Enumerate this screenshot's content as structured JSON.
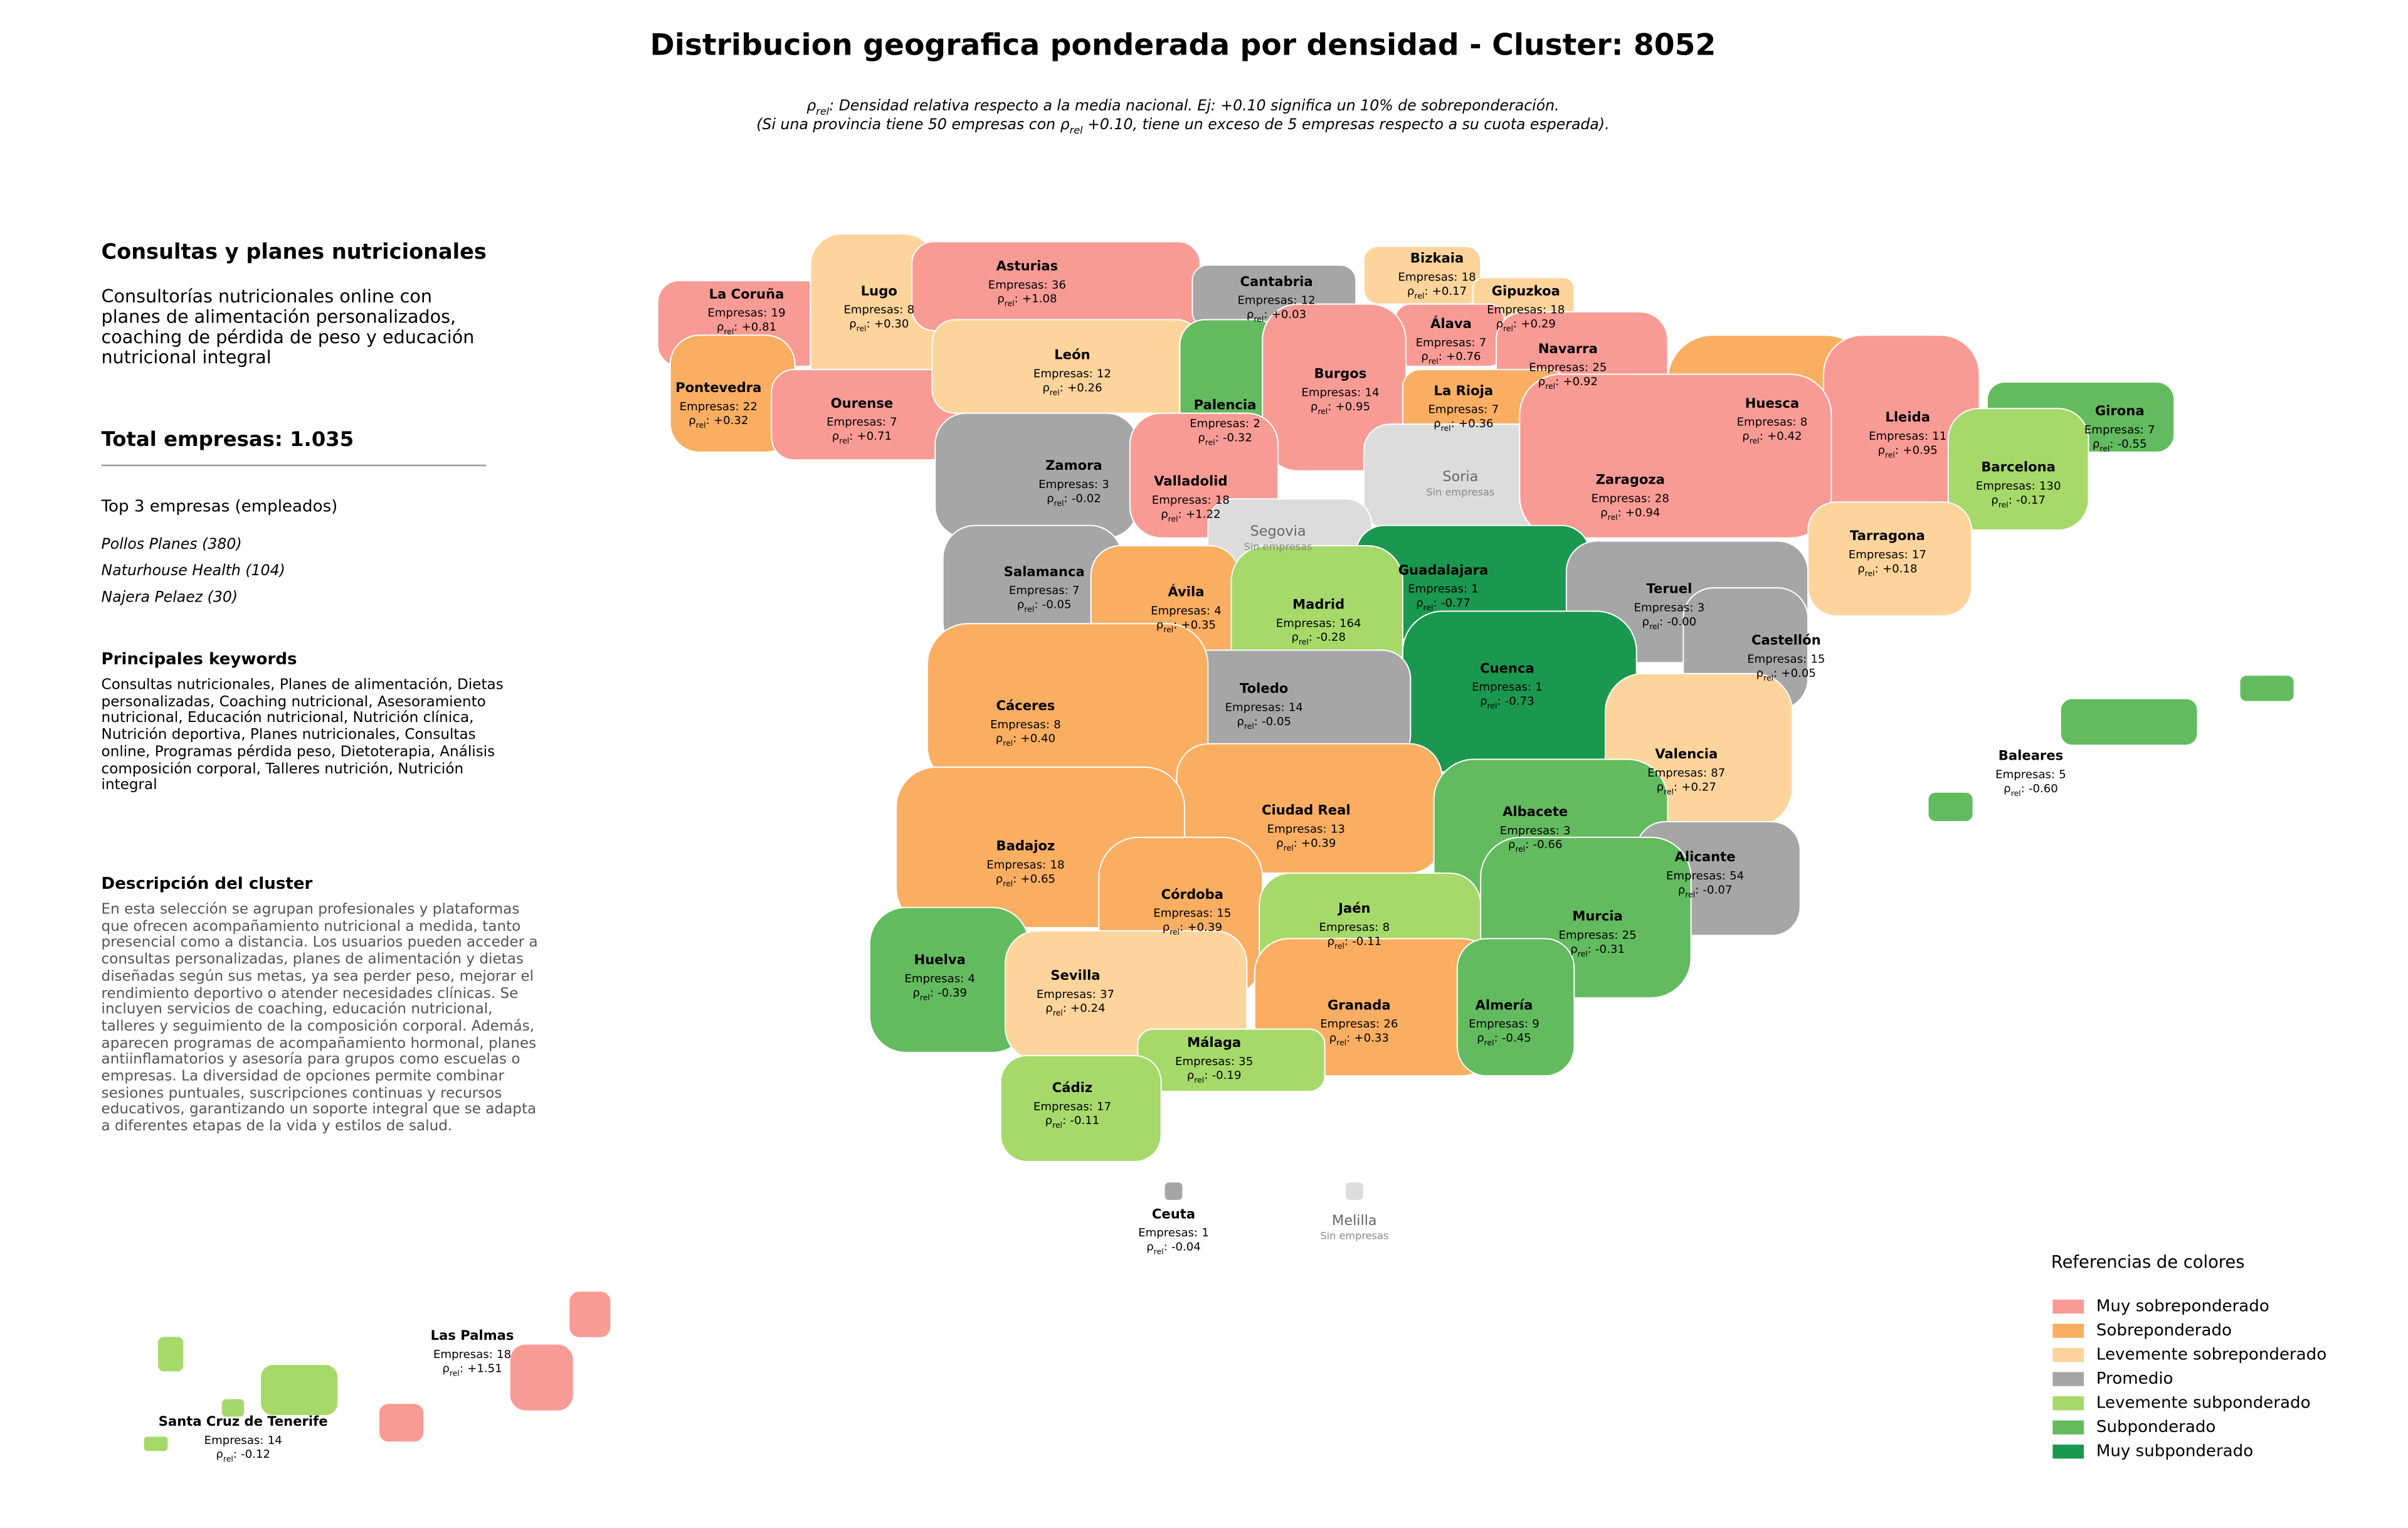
{
  "header": {
    "title": "Distribucion geografica ponderada por densidad - Cluster: 8052",
    "note": {
      "rho_symbol": "ρ",
      "rho_sub": "rel",
      "line1": ": Densidad relativa respecto a la media nacional. Ej: +0.10 significa un 10% de sobreponderación.",
      "line2_start": "(Si una provincia tiene 50 empresas con",
      "line2_end": "+0.10, tiene un exceso de 5 empresas respecto a su cuota esperada)."
    }
  },
  "sidebar": {
    "heading": "Consultas y planes nutricionales",
    "summary": "Consultorías nutricionales online con planes de alimentación personalizados, coaching de pérdida de peso y educación nutricional integral",
    "total": "Total empresas: 1.035",
    "top_title": "Top 3 empresas (empleados)",
    "top": [
      "Pollos Planes (380)",
      "Naturhouse Health (104)",
      "Najera Pelaez (30)"
    ],
    "keywords_title": "Principales keywords",
    "keywords": "Consultas nutricionales, Planes de alimentación, Dietas personalizadas, Coaching nutricional, Asesoramiento nutricional, Educación nutricional, Nutrición clínica, Nutrición deportiva, Planes nutricionales, Consultas online, Programas pérdida peso, Dietoterapia, Análisis composición corporal, Talleres nutrición, Nutrición integral",
    "description_title": "Descripción del cluster",
    "description": "En esta selección se agrupan profesionales y plataformas que ofrecen acompañamiento nutricional a medida, tanto presencial como a distancia. Los usuarios pueden acceder a consultas personalizadas, planes de alimentación y dietas diseñadas según sus metas, ya sea perder peso, mejorar el rendimiento deportivo o atender necesidades clínicas. Se incluyen servicios de coaching, educación nutricional, talleres y seguimiento de la composición corporal. Además, aparecen programas de acompañamiento hormonal, planes antiinflamatorios y asesoría para grupos como escuelas o empresas. La diversidad de opciones permite combinar sesiones puntuales, suscripciones continuas y recursos educativos, garantizando un soporte integral que se adapta a diferentes etapas de la vida y estilos de salud."
  },
  "map": {
    "empresas_label": "Empresas:",
    "rho_separator": ":",
    "no_data_label": "Sin empresas",
    "no_data_color": "#dcdcdc",
    "provinces": [
      {
        "name": "La Coruña",
        "empresas": 19,
        "rho": "+0.81",
        "color": "#f99b95"
      },
      {
        "name": "Lugo",
        "empresas": 8,
        "rho": "+0.30",
        "color": "#fdd49b"
      },
      {
        "name": "Asturias",
        "empresas": 36,
        "rho": "+1.08",
        "color": "#f99b95"
      },
      {
        "name": "Cantabria",
        "empresas": 12,
        "rho": "+0.03",
        "color": "#a6a6a6"
      },
      {
        "name": "Bizkaia",
        "empresas": 18,
        "rho": "+0.17",
        "color": "#fdd49b"
      },
      {
        "name": "Gipuzkoa",
        "empresas": 18,
        "rho": "+0.29",
        "color": "#fdd49b"
      },
      {
        "name": "Álava",
        "empresas": 7,
        "rho": "+0.76",
        "color": "#f99b95"
      },
      {
        "name": "Navarra",
        "empresas": 25,
        "rho": "+0.92",
        "color": "#f99b95"
      },
      {
        "name": "Pontevedra",
        "empresas": 22,
        "rho": "+0.32",
        "color": "#f9ae62"
      },
      {
        "name": "Ourense",
        "empresas": 7,
        "rho": "+0.71",
        "color": "#f99b95"
      },
      {
        "name": "León",
        "empresas": 12,
        "rho": "+0.26",
        "color": "#fdd49b"
      },
      {
        "name": "Palencia",
        "empresas": 2,
        "rho": "-0.32",
        "color": "#63bb5f"
      },
      {
        "name": "Burgos",
        "empresas": 14,
        "rho": "+0.95",
        "color": "#f99b95"
      },
      {
        "name": "La Rioja",
        "empresas": 7,
        "rho": "+0.36",
        "color": "#f9ae62"
      },
      {
        "name": "Huesca",
        "empresas": 8,
        "rho": "+0.42",
        "color": "#f9ae62"
      },
      {
        "name": "Lleida",
        "empresas": 11,
        "rho": "+0.95",
        "color": "#f99b95"
      },
      {
        "name": "Girona",
        "empresas": 7,
        "rho": "-0.55",
        "color": "#63bb5f"
      },
      {
        "name": "Zamora",
        "empresas": 3,
        "rho": "-0.02",
        "color": "#a6a6a6"
      },
      {
        "name": "Valladolid",
        "empresas": 18,
        "rho": "+1.22",
        "color": "#f99b95"
      },
      {
        "name": "Soria"
      },
      {
        "name": "Zaragoza",
        "empresas": 28,
        "rho": "+0.94",
        "color": "#f99b95"
      },
      {
        "name": "Barcelona",
        "empresas": 130,
        "rho": "-0.17",
        "color": "#a6d96a"
      },
      {
        "name": "Segovia"
      },
      {
        "name": "Tarragona",
        "empresas": 17,
        "rho": "+0.18",
        "color": "#fdd49b"
      },
      {
        "name": "Salamanca",
        "empresas": 7,
        "rho": "-0.05",
        "color": "#a6a6a6"
      },
      {
        "name": "Guadalajara",
        "empresas": 1,
        "rho": "-0.77",
        "color": "#1a9850"
      },
      {
        "name": "Ávila",
        "empresas": 4,
        "rho": "+0.35",
        "color": "#f9ae62"
      },
      {
        "name": "Madrid",
        "empresas": 164,
        "rho": "-0.28",
        "color": "#a6d96a"
      },
      {
        "name": "Teruel",
        "empresas": 3,
        "rho": "-0.00",
        "color": "#a6a6a6"
      },
      {
        "name": "Castellón",
        "empresas": 15,
        "rho": "+0.05",
        "color": "#a6a6a6"
      },
      {
        "name": "Cuenca",
        "empresas": 1,
        "rho": "-0.73",
        "color": "#1a9850"
      },
      {
        "name": "Toledo",
        "empresas": 14,
        "rho": "-0.05",
        "color": "#a6a6a6"
      },
      {
        "name": "Cáceres",
        "empresas": 8,
        "rho": "+0.40",
        "color": "#f9ae62"
      },
      {
        "name": "Valencia",
        "empresas": 87,
        "rho": "+0.27",
        "color": "#fdd49b"
      },
      {
        "name": "Baleares",
        "empresas": 5,
        "rho": "-0.60",
        "color": "#63bb5f"
      },
      {
        "name": "Ciudad Real",
        "empresas": 13,
        "rho": "+0.39",
        "color": "#f9ae62"
      },
      {
        "name": "Albacete",
        "empresas": 3,
        "rho": "-0.66",
        "color": "#63bb5f"
      },
      {
        "name": "Badajoz",
        "empresas": 18,
        "rho": "+0.65",
        "color": "#f9ae62"
      },
      {
        "name": "Alicante",
        "empresas": 54,
        "rho": "-0.07",
        "color": "#a6a6a6"
      },
      {
        "name": "Córdoba",
        "empresas": 15,
        "rho": "+0.39",
        "color": "#f9ae62"
      },
      {
        "name": "Jaén",
        "empresas": 8,
        "rho": "-0.11",
        "color": "#a6d96a"
      },
      {
        "name": "Murcia",
        "empresas": 25,
        "rho": "-0.31",
        "color": "#63bb5f"
      },
      {
        "name": "Huelva",
        "empresas": 4,
        "rho": "-0.39",
        "color": "#63bb5f"
      },
      {
        "name": "Sevilla",
        "empresas": 37,
        "rho": "+0.24",
        "color": "#fdd49b"
      },
      {
        "name": "Granada",
        "empresas": 26,
        "rho": "+0.33",
        "color": "#f9ae62"
      },
      {
        "name": "Almería",
        "empresas": 9,
        "rho": "-0.45",
        "color": "#63bb5f"
      },
      {
        "name": "Málaga",
        "empresas": 35,
        "rho": "-0.19",
        "color": "#a6d96a"
      },
      {
        "name": "Cádiz",
        "empresas": 17,
        "rho": "-0.11",
        "color": "#a6d96a"
      },
      {
        "name": "Ceuta",
        "empresas": 1,
        "rho": "-0.04",
        "color": "#a6a6a6"
      },
      {
        "name": "Melilla"
      },
      {
        "name": "Las Palmas",
        "empresas": 18,
        "rho": "+1.51",
        "color": "#f99b95"
      },
      {
        "name": "Santa Cruz de Tenerife",
        "empresas": 14,
        "rho": "-0.12",
        "color": "#a6d96a"
      }
    ]
  },
  "legend": {
    "title": "Referencias de colores",
    "items": [
      {
        "name": "Muy sobreponderado",
        "color": "#f99b95"
      },
      {
        "name": "Sobreponderado",
        "color": "#f9ae62"
      },
      {
        "name": "Levemente sobreponderado",
        "color": "#fdd49b"
      },
      {
        "name": "Promedio",
        "color": "#a6a6a6"
      },
      {
        "name": "Levemente subponderado",
        "color": "#a6d96a"
      },
      {
        "name": "Subponderado",
        "color": "#63bb5f"
      },
      {
        "name": "Muy subponderado",
        "color": "#1a9850"
      }
    ]
  }
}
